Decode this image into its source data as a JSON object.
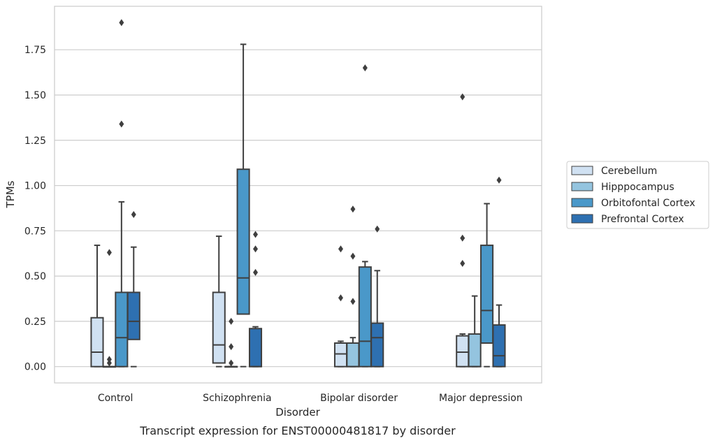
{
  "chart_data": {
    "type": "box",
    "xlabel": "Disorder",
    "ylabel": "TPMs",
    "caption": "Transcript expression for ENST00000481817 by disorder",
    "ylim": [
      -0.09,
      1.99
    ],
    "yticks": [
      "0.00",
      "0.25",
      "0.50",
      "0.75",
      "1.00",
      "1.25",
      "1.50",
      "1.75"
    ],
    "grid": "horizontal",
    "legend_position": "right",
    "categories": [
      "Control",
      "Schizophrenia",
      "Bipolar disorder",
      "Major depression"
    ],
    "series": [
      {
        "name": "Cerebellum",
        "color": "#d0e1f2",
        "boxes": [
          {
            "whislo": 0.0,
            "q1": 0.0,
            "med": 0.08,
            "q3": 0.27,
            "whishi": 0.67,
            "fliers": []
          },
          {
            "whislo": 0.0,
            "q1": 0.02,
            "med": 0.12,
            "q3": 0.41,
            "whishi": 0.72,
            "fliers": []
          },
          {
            "whislo": 0.0,
            "q1": 0.0,
            "med": 0.07,
            "q3": 0.13,
            "whishi": 0.14,
            "fliers": [
              0.38,
              0.65
            ]
          },
          {
            "whislo": 0.0,
            "q1": 0.0,
            "med": 0.08,
            "q3": 0.17,
            "whishi": 0.18,
            "fliers": [
              0.57,
              0.71,
              1.49
            ]
          }
        ]
      },
      {
        "name": "Hipppocampus",
        "color": "#94c4df",
        "boxes": [
          {
            "whislo": 0.0,
            "q1": 0.0,
            "med": 0.0,
            "q3": 0.0,
            "whishi": 0.0,
            "fliers": [
              0.02,
              0.04,
              0.63
            ]
          },
          {
            "whislo": 0.0,
            "q1": 0.0,
            "med": 0.0,
            "q3": 0.0,
            "whishi": 0.0,
            "fliers": [
              0.02,
              0.11,
              0.25
            ]
          },
          {
            "whislo": 0.0,
            "q1": 0.0,
            "med": 0.0,
            "q3": 0.13,
            "whishi": 0.16,
            "fliers": [
              0.36,
              0.61,
              0.87
            ]
          },
          {
            "whislo": 0.0,
            "q1": 0.0,
            "med": 0.0,
            "q3": 0.18,
            "whishi": 0.39,
            "fliers": []
          }
        ]
      },
      {
        "name": "Orbitofontal Cortex",
        "color": "#4a98c9",
        "boxes": [
          {
            "whislo": 0.0,
            "q1": 0.0,
            "med": 0.16,
            "q3": 0.41,
            "whishi": 0.91,
            "fliers": [
              1.34,
              1.9
            ]
          },
          {
            "whislo": 0.0,
            "q1": 0.29,
            "med": 0.49,
            "q3": 1.09,
            "whishi": 1.78,
            "fliers": []
          },
          {
            "whislo": 0.0,
            "q1": 0.0,
            "med": 0.14,
            "q3": 0.55,
            "whishi": 0.58,
            "fliers": [
              1.65
            ]
          },
          {
            "whislo": 0.0,
            "q1": 0.13,
            "med": 0.31,
            "q3": 0.67,
            "whishi": 0.9,
            "fliers": []
          }
        ]
      },
      {
        "name": "Prefrontal Cortex",
        "color": "#2e70b1",
        "boxes": [
          {
            "whislo": 0.0,
            "q1": 0.15,
            "med": 0.25,
            "q3": 0.41,
            "whishi": 0.66,
            "fliers": [
              0.84
            ]
          },
          {
            "whislo": 0.0,
            "q1": 0.0,
            "med": 0.0,
            "q3": 0.21,
            "whishi": 0.22,
            "fliers": [
              0.52,
              0.65,
              0.73
            ]
          },
          {
            "whislo": 0.0,
            "q1": 0.0,
            "med": 0.16,
            "q3": 0.24,
            "whishi": 0.53,
            "fliers": [
              0.76
            ]
          },
          {
            "whislo": 0.0,
            "q1": 0.0,
            "med": 0.06,
            "q3": 0.23,
            "whishi": 0.34,
            "fliers": [
              1.03
            ]
          }
        ]
      }
    ]
  }
}
